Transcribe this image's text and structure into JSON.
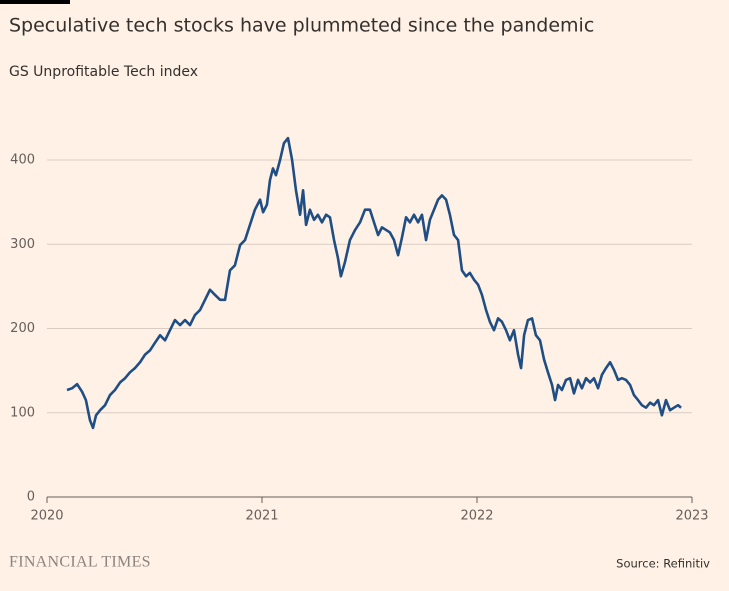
{
  "chart_data": {
    "type": "line",
    "title": "Speculative tech stocks have plummeted since the pandemic",
    "subtitle": "GS Unprofitable Tech index",
    "brand": "FINANCIAL TIMES",
    "source": "Source: Refinitiv",
    "color": "#1f4e85",
    "grid": true,
    "xlim": [
      2020,
      2023
    ],
    "xticks": [
      2020,
      2021,
      2022,
      2023
    ],
    "ylim": [
      0,
      450
    ],
    "yticks": [
      0,
      100,
      200,
      300,
      400
    ],
    "x": [
      2020.093,
      2020.116,
      2020.14,
      2020.163,
      2020.181,
      2020.2,
      2020.214,
      2020.228,
      2020.247,
      2020.27,
      2020.293,
      2020.316,
      2020.34,
      2020.363,
      2020.386,
      2020.409,
      2020.433,
      2020.456,
      2020.479,
      2020.502,
      2020.526,
      2020.549,
      2020.572,
      2020.595,
      2020.619,
      2020.642,
      2020.665,
      2020.688,
      2020.712,
      2020.735,
      2020.758,
      2020.781,
      2020.805,
      2020.828,
      2020.851,
      2020.874,
      2020.898,
      2020.921,
      2020.944,
      2020.967,
      2020.991,
      2021.005,
      2021.023,
      2021.037,
      2021.051,
      2021.065,
      2021.084,
      2021.102,
      2021.121,
      2021.14,
      2021.158,
      2021.177,
      2021.191,
      2021.205,
      2021.223,
      2021.242,
      2021.26,
      2021.279,
      2021.298,
      2021.316,
      2021.335,
      2021.353,
      2021.367,
      2021.386,
      2021.409,
      2021.433,
      2021.456,
      2021.479,
      2021.502,
      2021.521,
      2021.54,
      2021.558,
      2021.577,
      2021.595,
      2021.614,
      2021.633,
      2021.651,
      2021.67,
      2021.688,
      2021.707,
      2021.726,
      2021.744,
      2021.763,
      2021.781,
      2021.8,
      2021.819,
      2021.837,
      2021.856,
      2021.874,
      2021.893,
      2021.912,
      2021.93,
      2021.949,
      2021.967,
      2021.986,
      2022.005,
      2022.023,
      2022.042,
      2022.06,
      2022.079,
      2022.098,
      2022.116,
      2022.135,
      2022.153,
      2022.172,
      2022.191,
      2022.205,
      2022.219,
      2022.237,
      2022.256,
      2022.274,
      2022.293,
      2022.312,
      2022.33,
      2022.349,
      2022.363,
      2022.377,
      2022.395,
      2022.414,
      2022.433,
      2022.451,
      2022.47,
      2022.488,
      2022.507,
      2022.526,
      2022.544,
      2022.563,
      2022.581,
      2022.6,
      2022.619,
      2022.637,
      2022.656,
      2022.674,
      2022.693,
      2022.712,
      2022.73,
      2022.749,
      2022.767,
      2022.786,
      2022.805,
      2022.823,
      2022.842,
      2022.86,
      2022.879,
      2022.898,
      2022.916,
      2022.935,
      2022.949
    ],
    "values": [
      127,
      129,
      134,
      125,
      115,
      91,
      82,
      97,
      103,
      109,
      121,
      127,
      136,
      141,
      148,
      153,
      160,
      169,
      174,
      183,
      192,
      186,
      198,
      210,
      204,
      210,
      204,
      216,
      222,
      234,
      246,
      240,
      234,
      234,
      269,
      275,
      299,
      305,
      323,
      341,
      353,
      338,
      347,
      376,
      390,
      382,
      400,
      420,
      426,
      400,
      364,
      335,
      364,
      323,
      341,
      329,
      335,
      326,
      335,
      332,
      305,
      284,
      262,
      279,
      305,
      317,
      326,
      341,
      341,
      326,
      311,
      320,
      317,
      314,
      305,
      287,
      308,
      332,
      326,
      335,
      326,
      335,
      305,
      329,
      341,
      353,
      358,
      353,
      335,
      311,
      305,
      269,
      262,
      266,
      258,
      252,
      240,
      222,
      208,
      198,
      212,
      208,
      198,
      186,
      198,
      169,
      153,
      192,
      210,
      212,
      192,
      186,
      163,
      148,
      133,
      115,
      133,
      127,
      139,
      141,
      123,
      139,
      129,
      141,
      136,
      141,
      129,
      145,
      153,
      160,
      151,
      139,
      141,
      139,
      133,
      121,
      115,
      109,
      106,
      112,
      109,
      115,
      97,
      115,
      103,
      106,
      109,
      106
    ]
  }
}
